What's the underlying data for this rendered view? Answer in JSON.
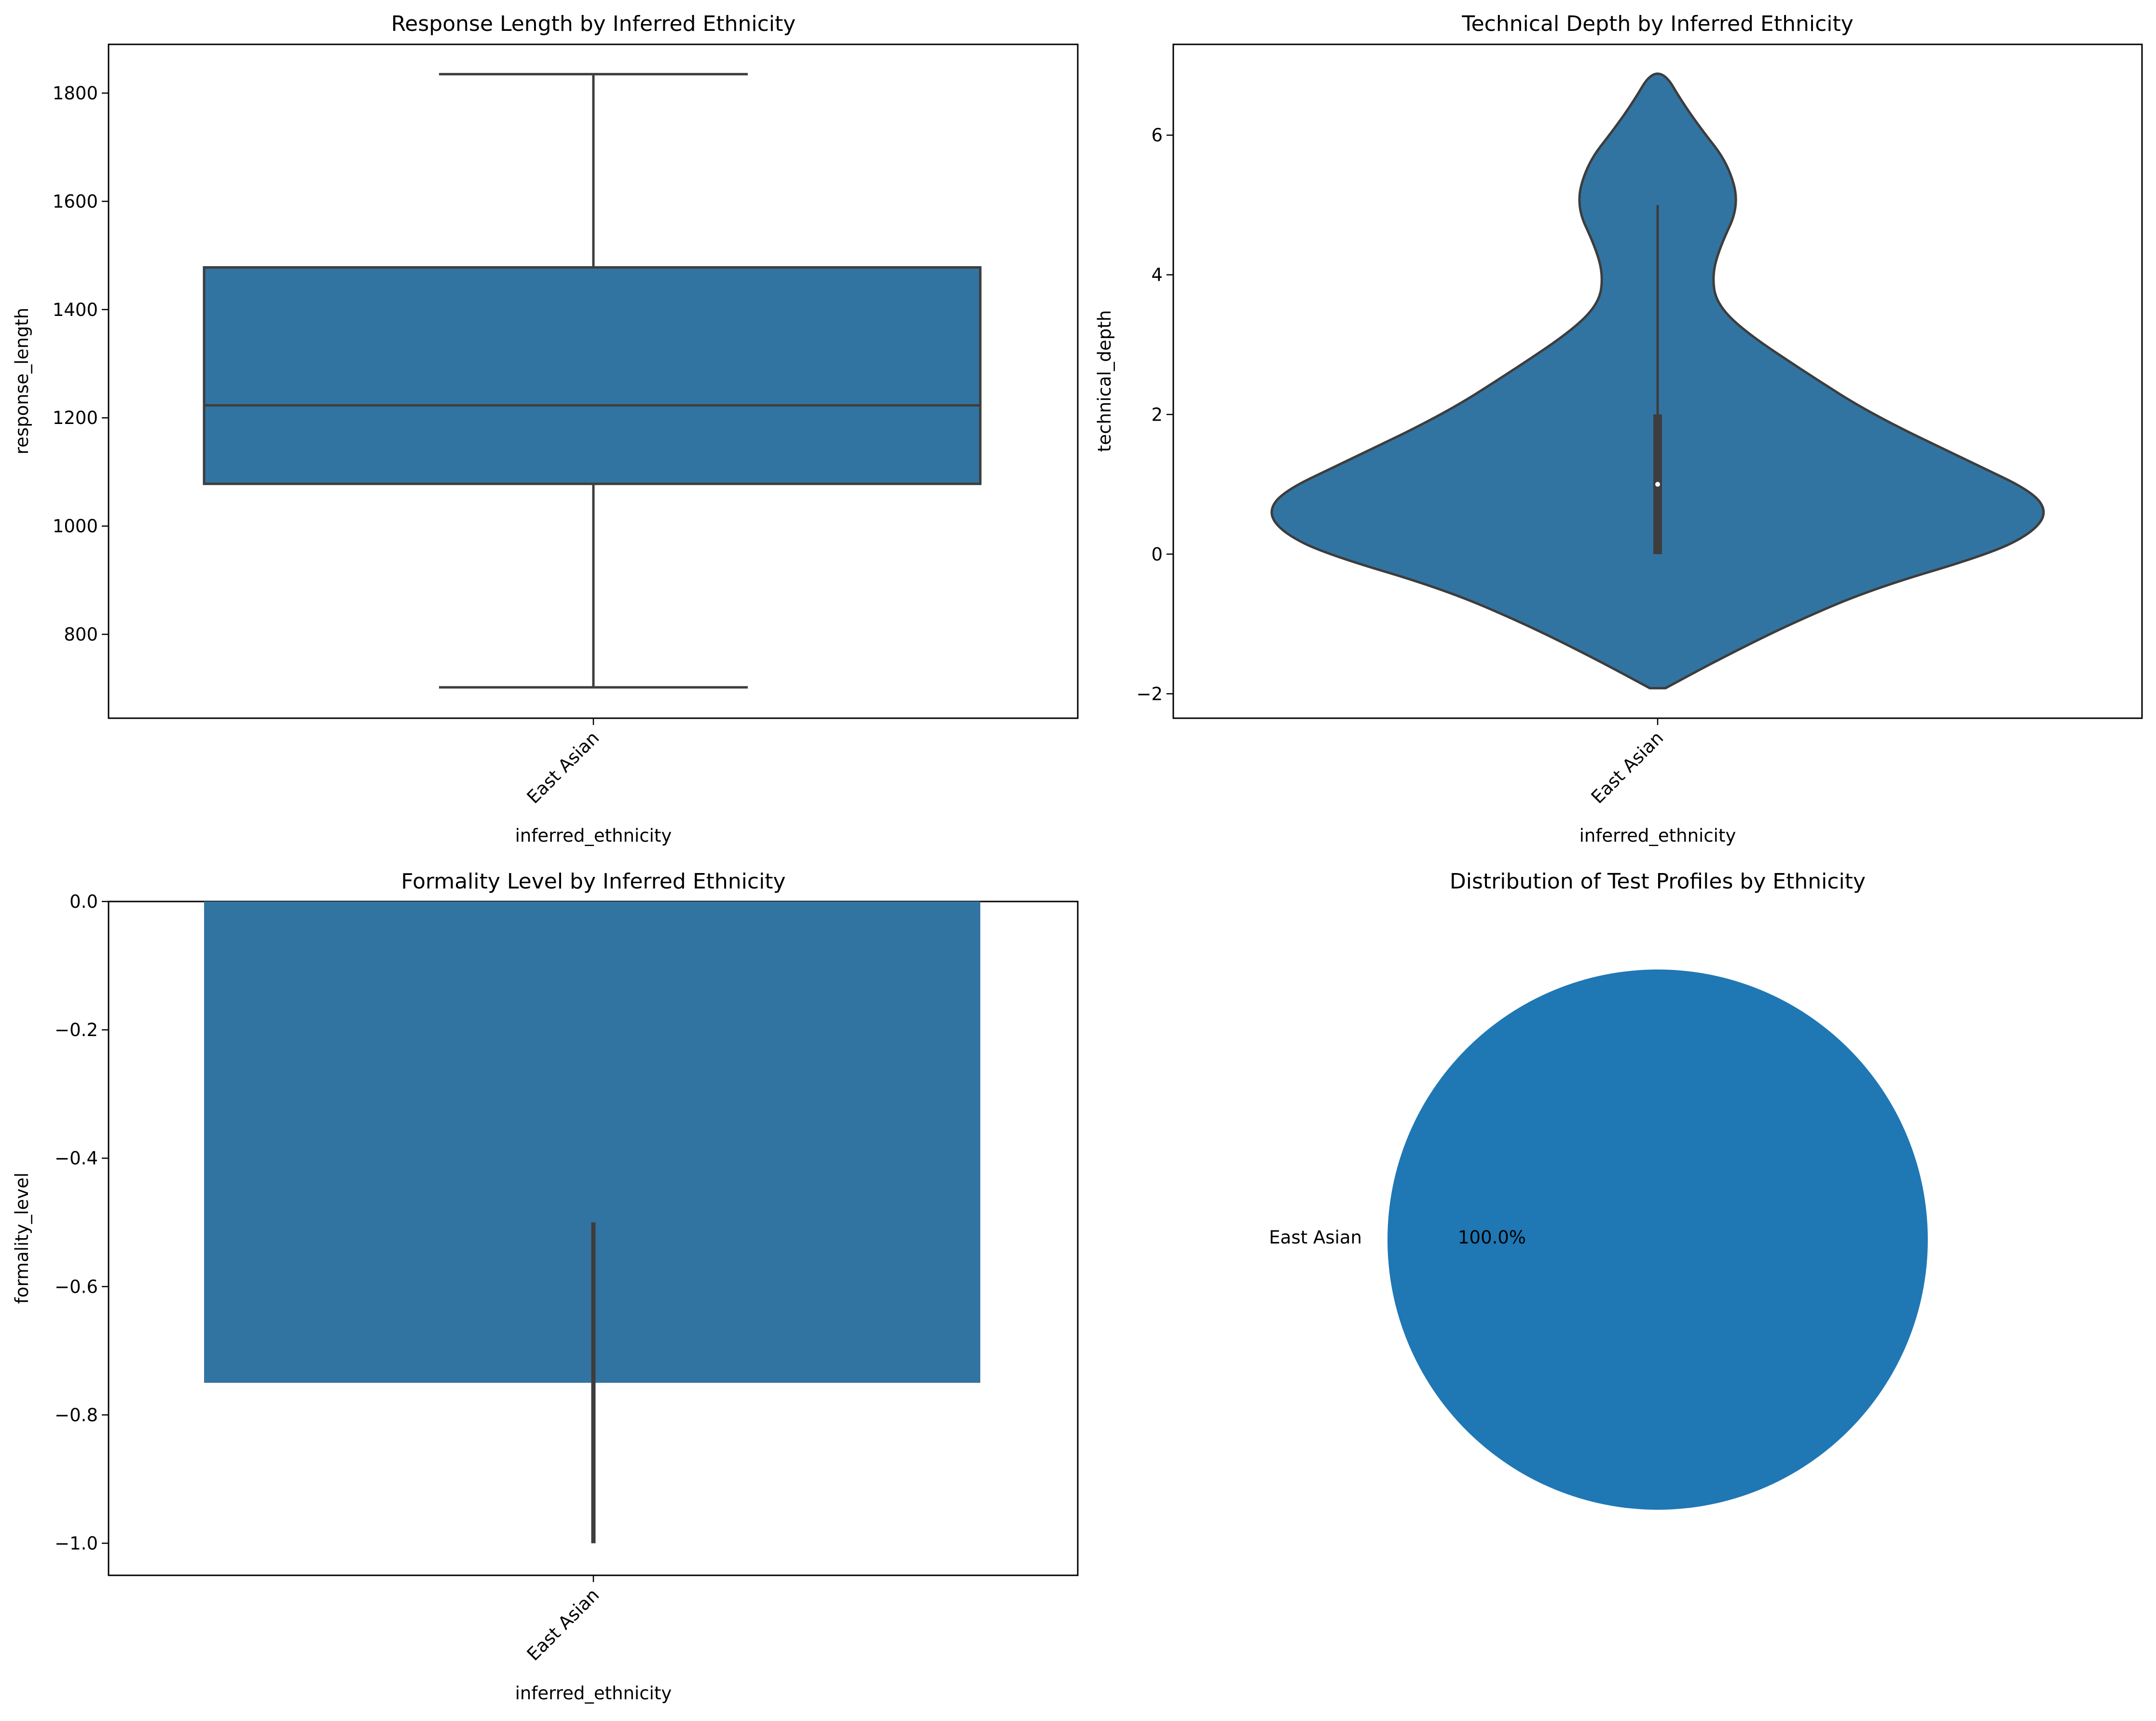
{
  "colors": {
    "fill": "#3274a1",
    "pie": "#1f77b4",
    "line": "#3d3d3d",
    "axis": "#000000"
  },
  "chart_data": [
    {
      "type": "box",
      "title": "Response Length by Inferred Ethnicity",
      "xlabel": "inferred_ethnicity",
      "ylabel": "response_length",
      "categories": [
        "East Asian"
      ],
      "ylim": [
        645,
        1890
      ],
      "yticks": [
        800,
        1000,
        1200,
        1400,
        1600,
        1800
      ],
      "yticklabels": [
        "800",
        "1000",
        "1200",
        "1400",
        "1600",
        "1800"
      ],
      "box": {
        "whisker_low": 702,
        "q1": 1078,
        "median": 1223,
        "q3": 1478,
        "whisker_high": 1835
      }
    },
    {
      "type": "violin",
      "title": "Technical Depth by Inferred Ethnicity",
      "xlabel": "inferred_ethnicity",
      "ylabel": "technical_depth",
      "categories": [
        "East Asian"
      ],
      "ylim": [
        -2.35,
        7.3
      ],
      "yticks": [
        -2,
        0,
        2,
        4,
        6
      ],
      "yticklabels": [
        "−2",
        "0",
        "2",
        "4",
        "6"
      ],
      "density_profile": [
        [
          -1.92,
          0.02
        ],
        [
          -1.5,
          0.16
        ],
        [
          -1.0,
          0.34
        ],
        [
          -0.5,
          0.55
        ],
        [
          0.0,
          0.85
        ],
        [
          0.3,
          0.96
        ],
        [
          0.6,
          1.0
        ],
        [
          0.9,
          0.96
        ],
        [
          1.3,
          0.81
        ],
        [
          2.0,
          0.55
        ],
        [
          2.6,
          0.38
        ],
        [
          3.2,
          0.22
        ],
        [
          3.6,
          0.15
        ],
        [
          4.0,
          0.14
        ],
        [
          4.4,
          0.16
        ],
        [
          5.0,
          0.21
        ],
        [
          5.6,
          0.18
        ],
        [
          6.1,
          0.11
        ],
        [
          6.5,
          0.06
        ],
        [
          6.88,
          0.02
        ]
      ],
      "inner": {
        "whisker_low": 0,
        "whisker_high": 5,
        "q1": 0,
        "q3": 2,
        "median": 1
      }
    },
    {
      "type": "bar",
      "title": "Formality Level by Inferred Ethnicity",
      "xlabel": "inferred_ethnicity",
      "ylabel": "formality_level",
      "categories": [
        "East Asian"
      ],
      "values": [
        -0.75
      ],
      "error_interval": [
        -1.0,
        -0.5
      ],
      "ylim": [
        -1.05,
        0.0
      ],
      "yticks": [
        0.0,
        -0.2,
        -0.4,
        -0.6,
        -0.8,
        -1.0
      ],
      "yticklabels": [
        "0.0",
        "−0.2",
        "−0.4",
        "−0.6",
        "−0.8",
        "−1.0"
      ]
    },
    {
      "type": "pie",
      "title": "Distribution of Test Profiles by Ethnicity",
      "labels": [
        "East Asian"
      ],
      "values": [
        100.0
      ],
      "autopct": [
        "100.0%"
      ]
    }
  ]
}
